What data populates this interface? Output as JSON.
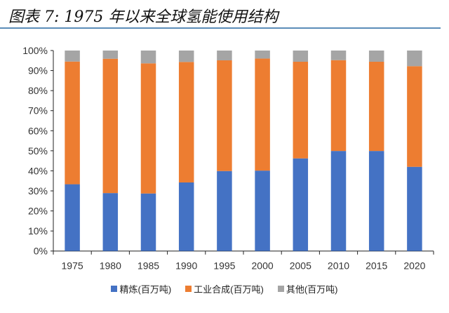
{
  "title": "图表 7:  1975 年以来全球氢能使用结构",
  "colors": {
    "title_rule": "#5b8db8"
  },
  "chart_data": {
    "type": "bar",
    "stacked": true,
    "title": "",
    "xlabel": "",
    "ylabel": "",
    "ylim": [
      0,
      100
    ],
    "y_ticks": [
      "0%",
      "10%",
      "20%",
      "30%",
      "40%",
      "50%",
      "60%",
      "70%",
      "80%",
      "90%",
      "100%"
    ],
    "grid": false,
    "legend_position": "bottom",
    "categories": [
      "1975",
      "1980",
      "1985",
      "1990",
      "1995",
      "2000",
      "2005",
      "2010",
      "2015",
      "2020"
    ],
    "series": [
      {
        "name": "精炼(百万吨)",
        "color": "#4472c4",
        "values": [
          33.3,
          28.9,
          28.7,
          34.2,
          39.9,
          40.1,
          46.2,
          49.9,
          49.9,
          42.0
        ]
      },
      {
        "name": "工业合成(百万吨)",
        "color": "#ed7d31",
        "values": [
          61.2,
          67.0,
          64.9,
          60.1,
          55.2,
          55.9,
          48.2,
          45.3,
          44.5,
          50.2
        ]
      },
      {
        "name": "其他(百万吨)",
        "color": "#a5a5a5",
        "values": [
          5.5,
          4.1,
          6.4,
          5.7,
          4.9,
          4.0,
          5.6,
          4.8,
          5.6,
          7.8
        ]
      }
    ]
  }
}
